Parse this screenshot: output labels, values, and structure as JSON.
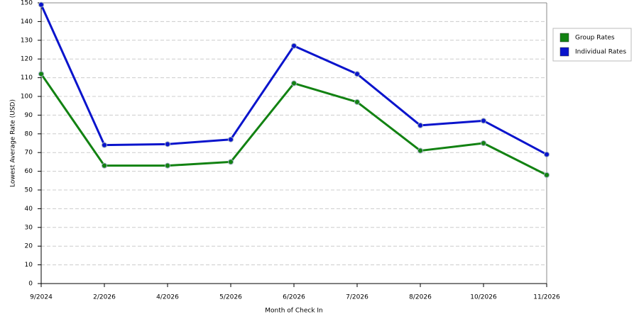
{
  "chart_data": {
    "type": "line",
    "x_label": "Month of Check In",
    "y_label": "Lowest Average Rate (USD)",
    "categories": [
      "9/2024",
      "2/2026",
      "4/2026",
      "5/2026",
      "6/2026",
      "7/2026",
      "8/2026",
      "10/2026",
      "11/2026"
    ],
    "series": [
      {
        "name": "Group Rates",
        "color": "#128212",
        "values": [
          112,
          63,
          63,
          65,
          107,
          97,
          71,
          75,
          58
        ]
      },
      {
        "name": "Individual Rates",
        "color": "#0a14cc",
        "values": [
          149,
          74,
          74.5,
          77,
          127,
          112,
          84.5,
          87,
          69
        ]
      }
    ],
    "ylim": [
      0,
      150
    ],
    "yticks": [
      0,
      10,
      20,
      30,
      40,
      50,
      60,
      70,
      80,
      90,
      100,
      110,
      120,
      130,
      140,
      150
    ],
    "grid": true,
    "legend": "top-right"
  }
}
